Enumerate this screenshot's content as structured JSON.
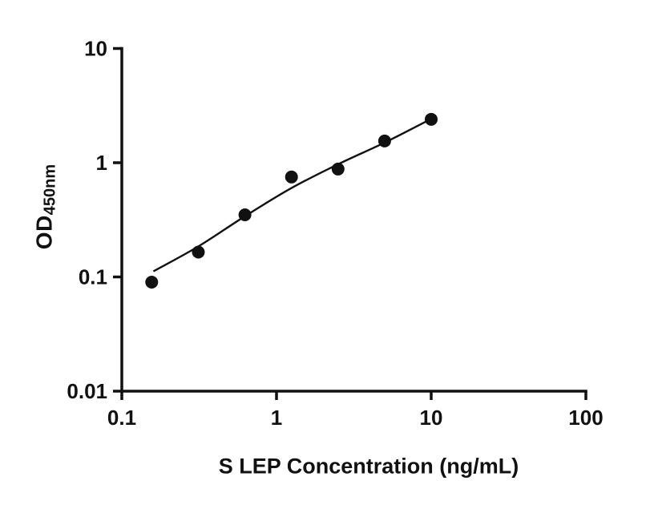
{
  "chart_data": {
    "type": "scatter",
    "title": "",
    "xlabel": "S LEP Concentration (ng/mL)",
    "ylabel_main": "OD",
    "ylabel_sub": "450nm",
    "x_scale": "log",
    "y_scale": "log",
    "xlim": [
      0.1,
      100
    ],
    "ylim": [
      0.01,
      10
    ],
    "grid": false,
    "legend": "none",
    "x_ticks": [
      {
        "value": 0.1,
        "label": "0.1"
      },
      {
        "value": 1,
        "label": "1"
      },
      {
        "value": 10,
        "label": "10"
      },
      {
        "value": 100,
        "label": "100"
      }
    ],
    "y_ticks": [
      {
        "value": 0.01,
        "label": "0.01"
      },
      {
        "value": 0.1,
        "label": "0.1"
      },
      {
        "value": 1,
        "label": "1"
      },
      {
        "value": 10,
        "label": "10"
      }
    ],
    "points": [
      {
        "x": 0.156,
        "y": 0.09
      },
      {
        "x": 0.3125,
        "y": 0.165
      },
      {
        "x": 0.625,
        "y": 0.35
      },
      {
        "x": 1.25,
        "y": 0.75
      },
      {
        "x": 2.5,
        "y": 0.88
      },
      {
        "x": 5,
        "y": 1.55
      },
      {
        "x": 10,
        "y": 2.4
      }
    ],
    "curve": [
      {
        "x": 0.16,
        "y": 0.112
      },
      {
        "x": 0.3125,
        "y": 0.185
      },
      {
        "x": 0.625,
        "y": 0.34
      },
      {
        "x": 1.25,
        "y": 0.6
      },
      {
        "x": 2.5,
        "y": 0.97
      },
      {
        "x": 5,
        "y": 1.5
      },
      {
        "x": 10,
        "y": 2.42
      }
    ],
    "marker_color": "#111111",
    "line_color": "#111111",
    "axis_color": "#111111"
  }
}
